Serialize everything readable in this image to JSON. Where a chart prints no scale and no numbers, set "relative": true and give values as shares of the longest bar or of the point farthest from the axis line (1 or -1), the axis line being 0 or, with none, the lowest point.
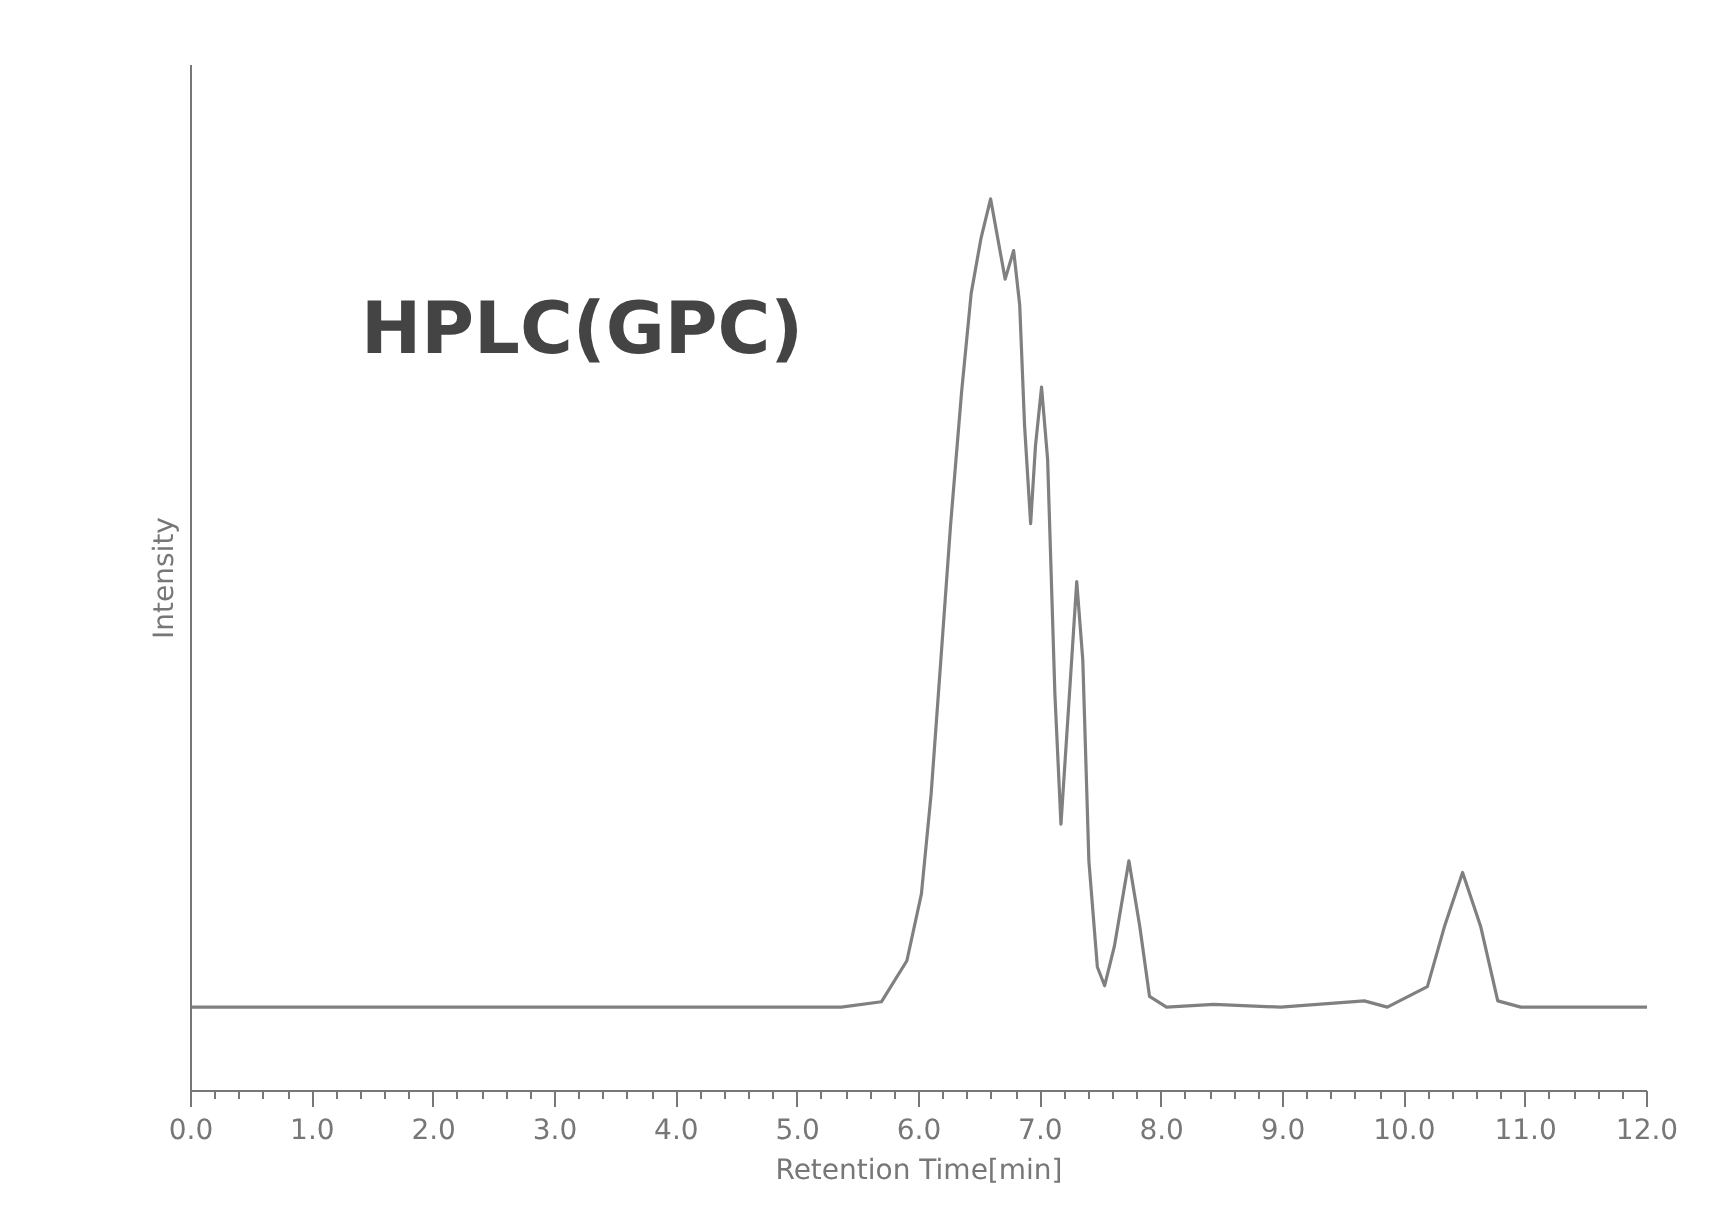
{
  "chart_data": {
    "type": "line",
    "title": "HPLC(GPC)",
    "xlabel": "Retention Time[min]",
    "ylabel": "Intensity",
    "relative": true,
    "grid": false,
    "marker": "none",
    "line_style": "solid",
    "xlim": [
      0,
      12
    ],
    "xticks": [
      {
        "value": 0,
        "label": "0.0"
      },
      {
        "value": 1,
        "label": "1.0"
      },
      {
        "value": 2,
        "label": "2.0"
      },
      {
        "value": 3,
        "label": "3.0"
      },
      {
        "value": 4,
        "label": "4.0"
      },
      {
        "value": 5,
        "label": "5.0"
      },
      {
        "value": 6,
        "label": "6.0"
      },
      {
        "value": 7,
        "label": "7.0"
      },
      {
        "value": 8,
        "label": "8.0"
      },
      {
        "value": 9,
        "label": "9.0"
      },
      {
        "value": 10,
        "label": "10.0"
      },
      {
        "value": 11,
        "label": "11.0"
      },
      {
        "value": 12,
        "label": "12.0"
      }
    ],
    "series": [
      {
        "color": "#808080",
        "x": [
          0,
          1,
          2,
          3,
          4,
          5,
          5.36,
          5.69,
          5.9,
          6.02,
          6.1,
          6.18,
          6.26,
          6.35,
          6.43,
          6.51,
          6.59,
          6.71,
          6.78,
          6.83,
          6.87,
          6.92,
          6.96,
          7.01,
          7.06,
          7.12,
          7.17,
          7.24,
          7.3,
          7.35,
          7.4,
          7.47,
          7.53,
          7.61,
          7.73,
          7.82,
          7.9,
          8.04,
          8.43,
          8.98,
          9.67,
          9.86,
          10.19,
          10.33,
          10.48,
          10.63,
          10.77,
          10.96,
          12
        ],
        "values": [
          0.094,
          0.094,
          0.094,
          0.094,
          0.094,
          0.094,
          0.094,
          0.1,
          0.146,
          0.221,
          0.333,
          0.483,
          0.634,
          0.782,
          0.894,
          0.955,
          1.0,
          0.91,
          0.942,
          0.881,
          0.746,
          0.636,
          0.723,
          0.789,
          0.708,
          0.445,
          0.299,
          0.445,
          0.571,
          0.483,
          0.258,
          0.139,
          0.118,
          0.162,
          0.258,
          0.184,
          0.106,
          0.094,
          0.097,
          0.094,
          0.101,
          0.094,
          0.117,
          0.184,
          0.245,
          0.184,
          0.101,
          0.094,
          0.094
        ]
      }
    ]
  }
}
